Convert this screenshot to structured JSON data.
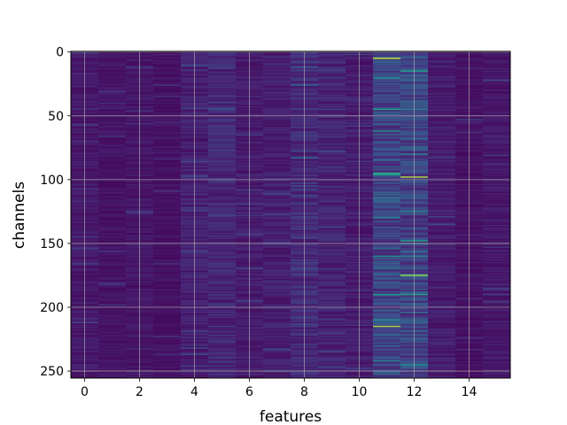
{
  "chart_data": {
    "type": "heatmap",
    "title": "",
    "xlabel": "features",
    "ylabel": "channels",
    "x_range": [
      -0.5,
      15.5
    ],
    "y_range": [
      255.5,
      -0.5
    ],
    "rows": 256,
    "cols": 16,
    "x_ticks": [
      "0",
      "2",
      "4",
      "6",
      "8",
      "10",
      "12",
      "14"
    ],
    "y_ticks": [
      "0",
      "50",
      "100",
      "150",
      "200",
      "250"
    ],
    "colormap": "viridis",
    "grid": true,
    "column_mean_intensity": [
      0.1,
      0.08,
      0.09,
      0.07,
      0.13,
      0.16,
      0.11,
      0.13,
      0.18,
      0.15,
      0.12,
      0.3,
      0.3,
      0.12,
      0.07,
      0.1
    ],
    "highlights": [
      {
        "col": 11,
        "row": 5,
        "value": 0.95
      },
      {
        "col": 11,
        "row": 45,
        "value": 0.7
      },
      {
        "col": 11,
        "row": 62,
        "value": 0.65
      },
      {
        "col": 11,
        "row": 95,
        "value": 0.75
      },
      {
        "col": 11,
        "row": 96,
        "value": 0.7
      },
      {
        "col": 11,
        "row": 130,
        "value": 0.55
      },
      {
        "col": 11,
        "row": 160,
        "value": 0.6
      },
      {
        "col": 11,
        "row": 190,
        "value": 0.65
      },
      {
        "col": 11,
        "row": 210,
        "value": 0.6
      },
      {
        "col": 11,
        "row": 215,
        "value": 0.92
      },
      {
        "col": 11,
        "row": 242,
        "value": 0.55
      },
      {
        "col": 12,
        "row": 15,
        "value": 0.7
      },
      {
        "col": 12,
        "row": 45,
        "value": 0.55
      },
      {
        "col": 12,
        "row": 80,
        "value": 0.6
      },
      {
        "col": 12,
        "row": 98,
        "value": 0.93
      },
      {
        "col": 12,
        "row": 125,
        "value": 0.55
      },
      {
        "col": 12,
        "row": 148,
        "value": 0.7
      },
      {
        "col": 12,
        "row": 160,
        "value": 0.55
      },
      {
        "col": 12,
        "row": 175,
        "value": 0.9
      },
      {
        "col": 12,
        "row": 190,
        "value": 0.7
      },
      {
        "col": 12,
        "row": 245,
        "value": 0.6
      },
      {
        "col": 8,
        "row": 26,
        "value": 0.4
      },
      {
        "col": 8,
        "row": 83,
        "value": 0.45
      },
      {
        "col": 8,
        "row": 105,
        "value": 0.35
      }
    ]
  }
}
